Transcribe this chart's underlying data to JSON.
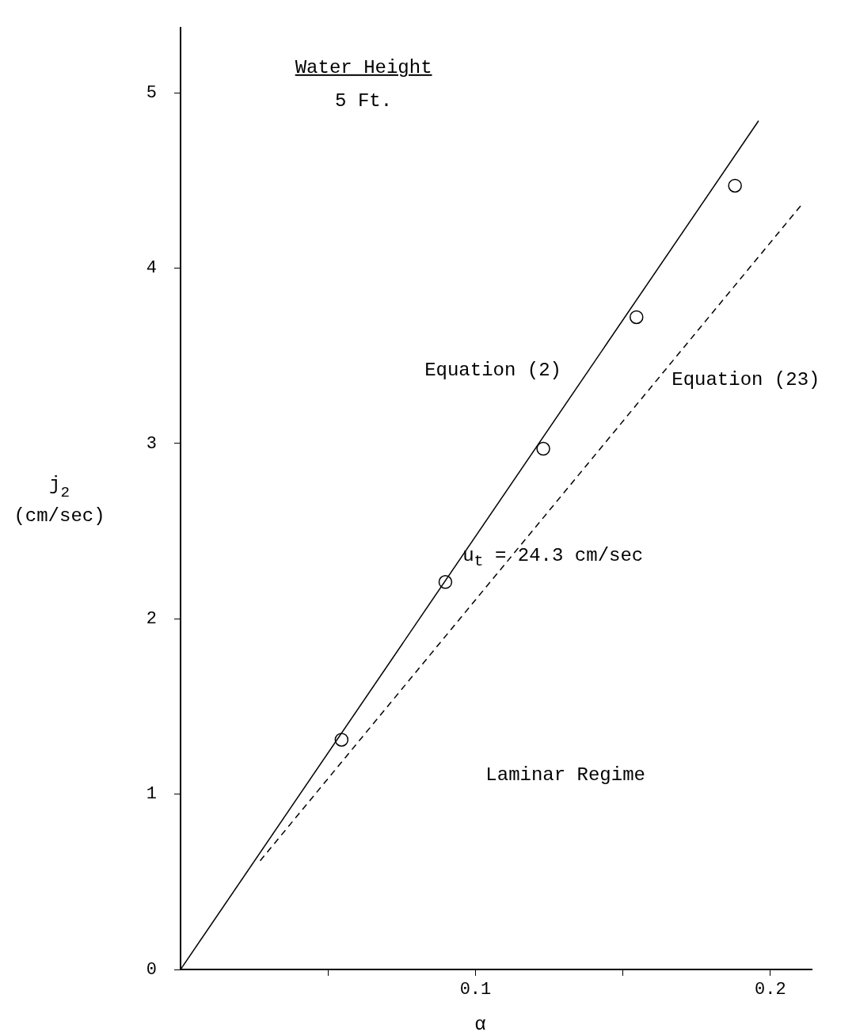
{
  "chart_data": {
    "type": "scatter",
    "xlabel": "α",
    "ylabel": "j$_{2}$ (cm/sec)",
    "xlim": [
      0,
      0.214
    ],
    "ylim": [
      0,
      5.37
    ],
    "xticks": [
      {
        "value": 0.05,
        "label": null
      },
      {
        "value": 0.1,
        "label": "0.1"
      },
      {
        "value": 0.15,
        "label": null
      },
      {
        "value": 0.2,
        "label": "0.2"
      }
    ],
    "yticks": [
      0,
      1,
      2,
      3,
      4,
      5
    ],
    "grid": false,
    "legend": false,
    "series": [
      {
        "type": "scatter",
        "marker": "circle",
        "color": "#000000",
        "x": [
          0.0546,
          0.0898,
          0.123,
          0.1546,
          0.188
        ],
        "values": [
          1.31,
          2.21,
          2.97,
          3.72,
          4.47
        ]
      },
      {
        "type": "line",
        "name": "Equation (2)",
        "color": "#000000",
        "line_style": "solid",
        "x": [
          0,
          0.196
        ],
        "values": [
          0,
          4.84
        ]
      },
      {
        "type": "line",
        "name": "Equation (23)",
        "color": "#000000",
        "line_style": "dashed",
        "x": [
          0.027,
          0.211
        ],
        "values": [
          0.62,
          4.37
        ]
      }
    ],
    "annotations": [
      "Water Height",
      "5 Ft.",
      "u$_{t}$ = 24.3 cm/sec",
      "Laminar Regime"
    ]
  }
}
